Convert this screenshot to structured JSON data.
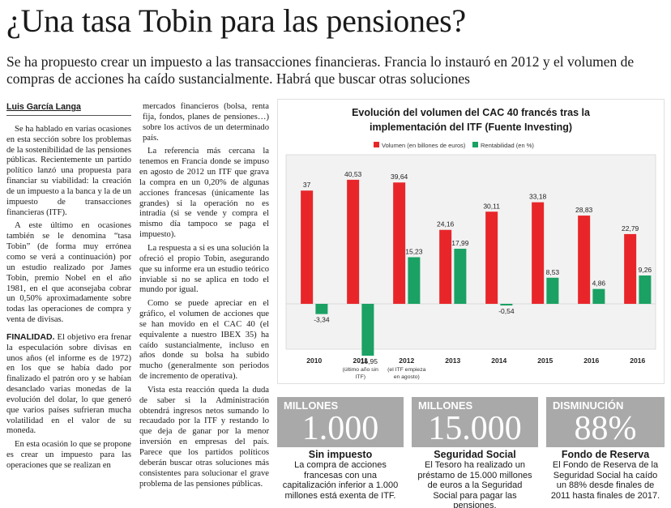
{
  "headline": "¿Una tasa Tobin para las pensiones?",
  "deck": "Se ha propuesto crear un impuesto a las transacciones financieras. Francia lo instauró en 2012 y el volumen de compras de acciones ha caído sustancialmente. Habrá que buscar otras soluciones",
  "byline": "Luis García Langa",
  "col1": {
    "p1": "Se ha hablado en varias ocasiones en esta sección sobre los problemas de la sostenibilidad de las pensiones públicas. Recientemente un partido político lanzó una propuesta para financiar su viabilidad: la creación de un impuesto a la banca y la de un impuesto de transacciones financieras (ITF).",
    "p2": "A este último en ocasiones también se le denomina “tasa Tobin” (de forma muy errónea como se verá a continuación) por un estudio realizado por James Tobin, premio Nobel en el año 1981, en el que aconsejaba cobrar un 0,50% aproximadamente sobre todas las operaciones de compra y venta de divisas.",
    "p3_leadin": "FINALIDAD.",
    "p3": " El objetivo era frenar la especulación sobre divisas en unos años (el informe es de 1972) en los que se había dado por finalizado el patrón oro y se habían desanclado varias monedas de la evolución del dolar, lo que generó que varios países sufrieran mucha volatilidad en el valor de su moneda.",
    "p4": "En esta ocasión lo que se propone es crear un impuesto para las operaciones que se realizan en"
  },
  "col2": {
    "p0": "mercados financieros (bolsa, renta fija, fondos, planes de pensiones…) sobre los activos de un determinado país.",
    "p1": "La referencia más cercana la tenemos en Francia donde se impuso en agosto de 2012 un ITF que grava la compra en un 0,20% de algunas acciones francesas (únicamente las grandes) si la operación no es intradía (si se vende y compra el mismo día tampoco se paga el impuesto).",
    "p2": "La respuesta a si es una solución la ofreció el propio Tobin, asegurando que su informe era un estudio teórico inviable si no se aplica en todo el mundo por igual.",
    "p3": "Como se puede apreciar en el gráfico, el volumen de acciones que se han movido en el CAC 40 (el equivalente a nuestro IBEX 35) ha caído sustancialmente, incluso en años donde su bolsa ha subido mucho (generalmente son periodos de incremento de operativa).",
    "p4": "Vista esta reacción queda la duda de saber si la Administración obtendrá ingresos netos sumando lo recaudado por la ITF y restando lo que deja de ganar por la menor inversión en empresas del país. Parece que los partidos políticos deberán buscar otras soluciones más consistentes para solucionar el grave problema de las pensiones públicas."
  },
  "chart_data": {
    "type": "bar",
    "title": "Evolución del volumen del CAC 40 francés tras la implementación del ITF (Fuente Investing)",
    "title_line1": "Evolución del volumen del CAC 40 francés tras la",
    "title_line2": "implementación del ITF (Fuente Investing)",
    "categories": [
      "2010",
      "2011",
      "2012",
      "2013",
      "2014",
      "2015",
      "2016",
      "2016"
    ],
    "category_sublabels": [
      "",
      "(último año sin ITF)",
      "(el ITF empieza en agosto)",
      "",
      "",
      "",
      "",
      ""
    ],
    "category_sublabel_lines": [
      [],
      [
        "(último año sin",
        "ITF)"
      ],
      [
        "(el ITF empieza",
        "en agosto)"
      ],
      [],
      [],
      [],
      [],
      []
    ],
    "series": [
      {
        "name": "Volumen (en billones de euros)",
        "color": "#e8262a",
        "values": [
          37,
          40.53,
          39.64,
          24.16,
          30.11,
          33.18,
          28.83,
          22.79
        ],
        "labels": [
          "37",
          "40,53",
          "39,64",
          "24,16",
          "30,11",
          "33,18",
          "28,83",
          "22,79"
        ]
      },
      {
        "name": "Rentabilidad (en %)",
        "color": "#1aa163",
        "values": [
          -3.34,
          -16.95,
          15.23,
          17.99,
          -0.54,
          8.53,
          4.86,
          9.26
        ],
        "labels": [
          "-3,34",
          "-16,95",
          "15,23",
          "17,99",
          "-0,54",
          "8,53",
          "4,86",
          "9,26"
        ]
      }
    ],
    "ylim": [
      -20,
      45
    ],
    "grid": false,
    "legend": "top-left"
  },
  "stats": [
    {
      "label": "MILLONES",
      "value": "1.000",
      "title": "Sin impuesto",
      "desc": "La compra de acciones francesas con una capitalización inferior a 1.000 millones está exenta de ITF."
    },
    {
      "label": "MILLONES",
      "value": "15.000",
      "title": "Seguridad Social",
      "desc": "El Tesoro ha realizado un préstamo de 15.000 millones de euros a la Seguridad Social para pagar las pensiones."
    },
    {
      "label": "DISMINUCIÓN",
      "value": "88%",
      "title": "Fondo de Reserva",
      "desc": "El Fondo de Reserva de la Seguridad Social ha caído un 88% desde finales de 2011 hasta finales de 2017."
    }
  ]
}
